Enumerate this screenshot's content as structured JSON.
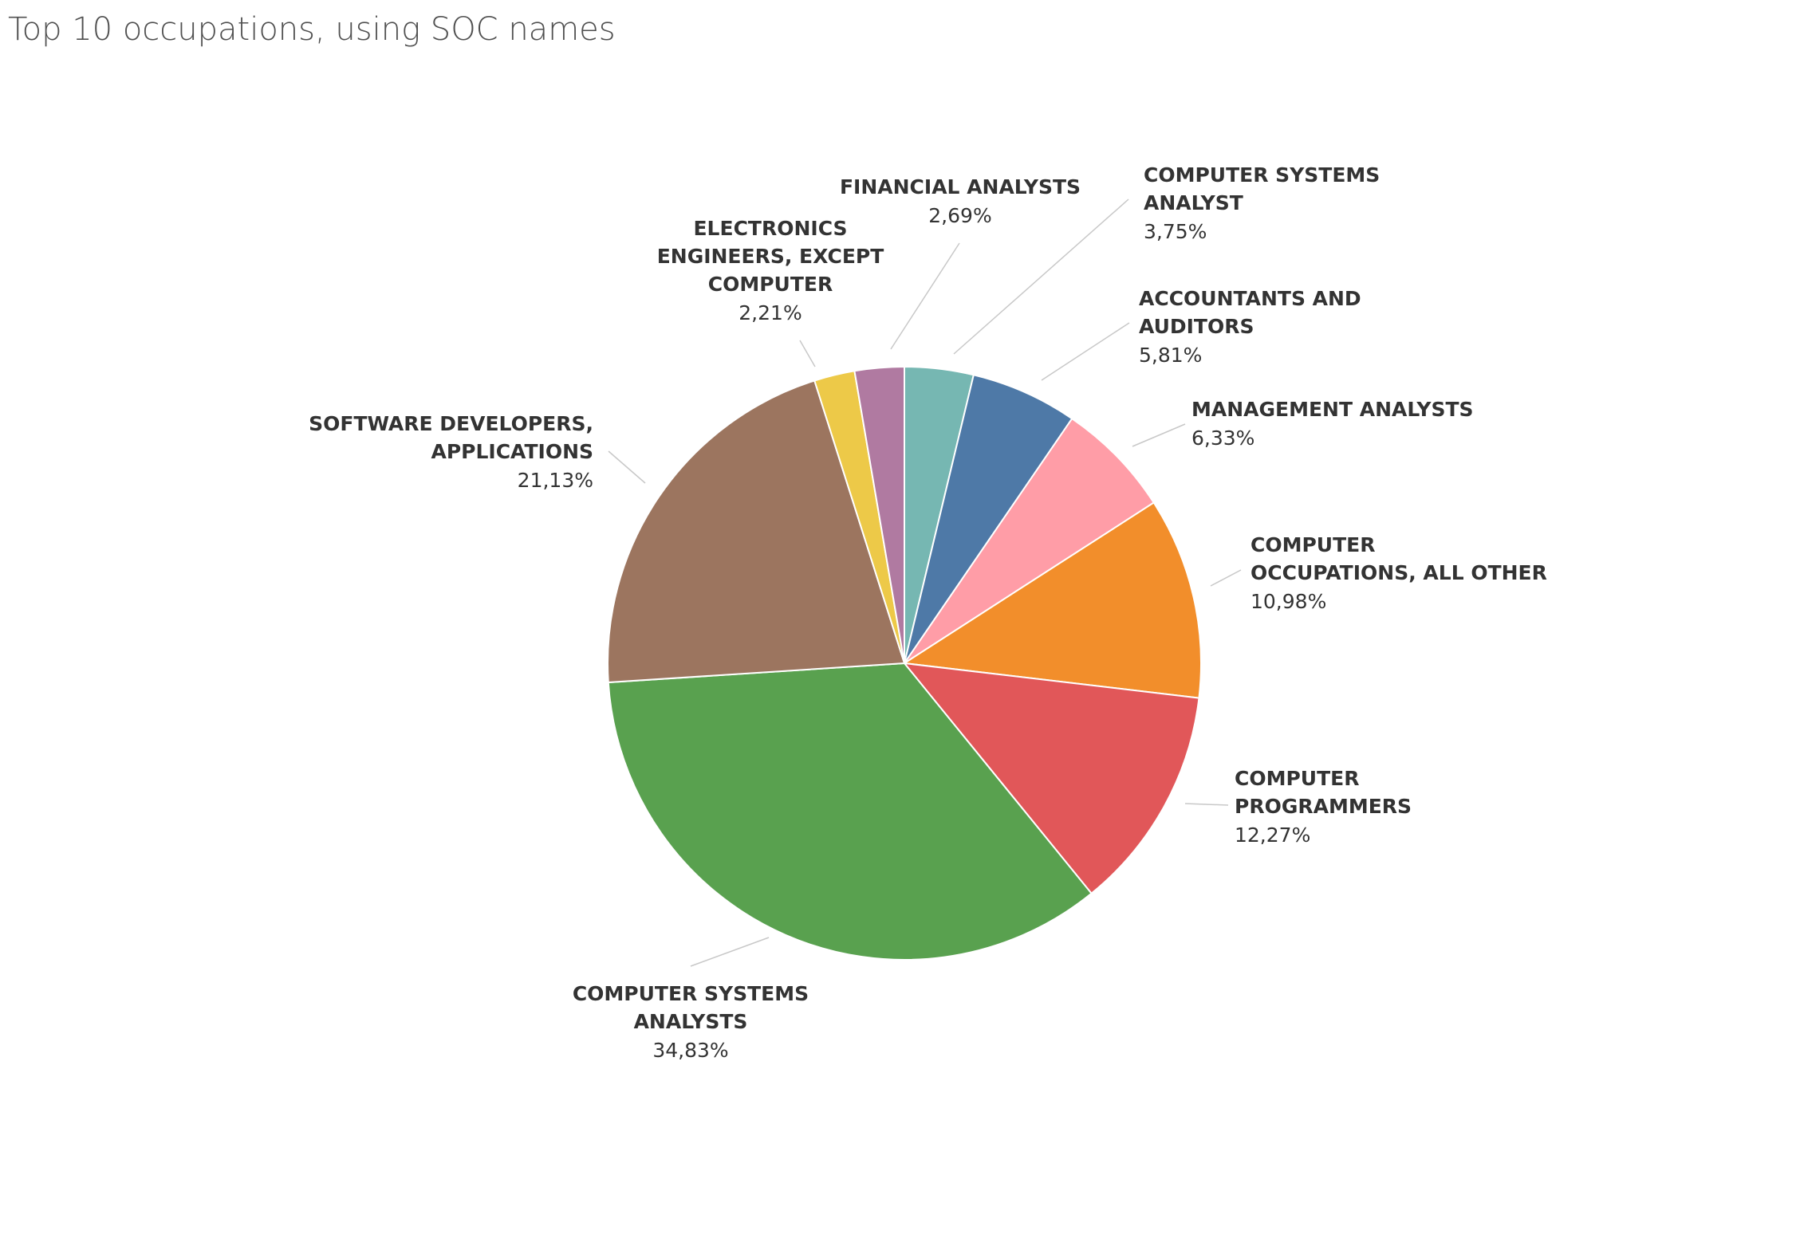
{
  "chart_data": {
    "type": "pie",
    "title": "Top 10 occupations, using SOC names",
    "start_angle_deg": 0,
    "direction": "clockwise",
    "slices": [
      {
        "name": "COMPUTER SYSTEMS ANALYST",
        "label_lines": [
          "COMPUTER SYSTEMS",
          "ANALYST"
        ],
        "value": 3.75,
        "value_label": "3,75%",
        "color": "#76B7B2"
      },
      {
        "name": "ACCOUNTANTS AND AUDITORS",
        "label_lines": [
          "ACCOUNTANTS AND",
          "AUDITORS"
        ],
        "value": 5.81,
        "value_label": "5,81%",
        "color": "#4E79A7"
      },
      {
        "name": "MANAGEMENT ANALYSTS",
        "label_lines": [
          "MANAGEMENT ANALYSTS"
        ],
        "value": 6.33,
        "value_label": "6,33%",
        "color": "#FF9DA7"
      },
      {
        "name": "COMPUTER OCCUPATIONS, ALL OTHER",
        "label_lines": [
          "COMPUTER",
          "OCCUPATIONS, ALL OTHER"
        ],
        "value": 10.98,
        "value_label": "10,98%",
        "color": "#F28E2B"
      },
      {
        "name": "COMPUTER PROGRAMMERS",
        "label_lines": [
          "COMPUTER",
          "PROGRAMMERS"
        ],
        "value": 12.27,
        "value_label": "12,27%",
        "color": "#E15759"
      },
      {
        "name": "COMPUTER SYSTEMS ANALYSTS",
        "label_lines": [
          "COMPUTER SYSTEMS",
          "ANALYSTS"
        ],
        "value": 34.83,
        "value_label": "34,83%",
        "color": "#59A14F"
      },
      {
        "name": "SOFTWARE DEVELOPERS, APPLICATIONS",
        "label_lines": [
          "SOFTWARE DEVELOPERS,",
          "APPLICATIONS"
        ],
        "value": 21.13,
        "value_label": "21,13%",
        "color": "#9C755F"
      },
      {
        "name": "ELECTRONICS ENGINEERS, EXCEPT COMPUTER",
        "label_lines": [
          "ELECTRONICS",
          "ENGINEERS, EXCEPT",
          "COMPUTER"
        ],
        "value": 2.21,
        "value_label": "2,21%",
        "color": "#EDC948"
      },
      {
        "name": "FINANCIAL ANALYSTS",
        "label_lines": [
          "FINANCIAL ANALYSTS"
        ],
        "value": 2.69,
        "value_label": "2,69%",
        "color": "#B07AA1"
      }
    ]
  }
}
